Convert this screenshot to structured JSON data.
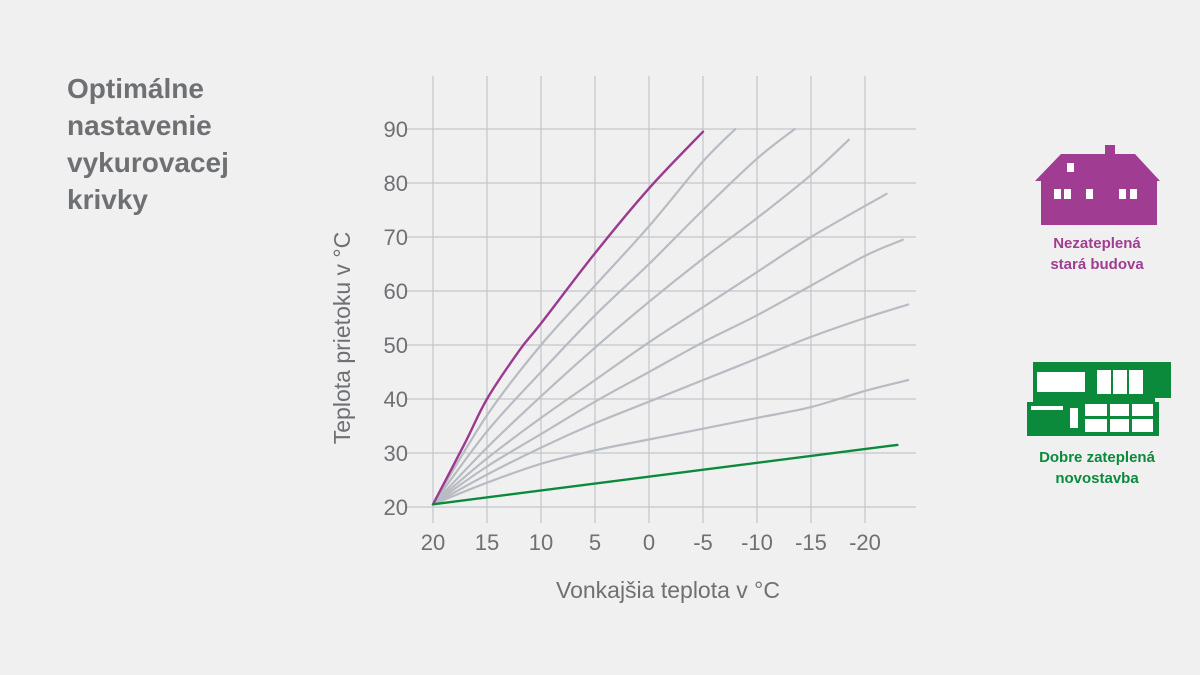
{
  "title": {
    "lines": [
      "Optimálne",
      "nastavenie",
      "vykurovacej",
      "krivky"
    ]
  },
  "legend": {
    "old_building": {
      "line1": "Nezateplená",
      "line2": "stará budova",
      "color": "#a03c91",
      "icon": "house-icon"
    },
    "new_building": {
      "line1": "Dobre zateplená",
      "line2": "novostavba",
      "color": "#0b8a3c",
      "icon": "modern-building-icon"
    }
  },
  "chart_data": {
    "type": "line",
    "xlabel": "Vonkajšia teplota v °C",
    "ylabel": "Teplota prietoku v °C",
    "x_reversed": true,
    "xlim": [
      20,
      -25
    ],
    "ylim": [
      20,
      90
    ],
    "xticks": [
      20,
      15,
      10,
      5,
      0,
      -5,
      -10,
      -15,
      -20
    ],
    "xtick_labels": [
      "20",
      "15",
      "10",
      "5",
      "0",
      "-5",
      "-10",
      "-15",
      "-20"
    ],
    "yticks": [
      20,
      30,
      40,
      50,
      60,
      70,
      80,
      90
    ],
    "ytick_labels": [
      "20",
      "30",
      "40",
      "50",
      "60",
      "70",
      "80",
      "90"
    ],
    "grid": true,
    "series": [
      {
        "x": [
          20,
          17,
          15,
          12,
          10,
          5,
          0,
          -5
        ],
        "y": [
          20.5,
          32,
          40,
          49,
          54,
          67,
          79,
          89.5
        ],
        "color": "#9b3a8f",
        "highlight": true
      },
      {
        "x": [
          20,
          15,
          10,
          5,
          0,
          -5,
          -8
        ],
        "y": [
          20.5,
          37,
          50,
          61,
          72,
          84,
          90
        ],
        "color": "#b8bcc2"
      },
      {
        "x": [
          20,
          15,
          10,
          5,
          0,
          -5,
          -10,
          -13.5
        ],
        "y": [
          20.5,
          34,
          45,
          55.5,
          65,
          75,
          84.5,
          90
        ],
        "color": "#b8bcc2"
      },
      {
        "x": [
          20,
          15,
          10,
          5,
          0,
          -5,
          -10,
          -15,
          -18.5
        ],
        "y": [
          20.5,
          31,
          40.5,
          49.5,
          58,
          66,
          73.5,
          81.5,
          88
        ],
        "color": "#b8bcc2"
      },
      {
        "x": [
          20,
          15,
          10,
          5,
          0,
          -5,
          -10,
          -15,
          -22
        ],
        "y": [
          20.5,
          29,
          36.5,
          43.5,
          50.5,
          57,
          63.5,
          70,
          78
        ],
        "color": "#b8bcc2"
      },
      {
        "x": [
          20,
          15,
          10,
          5,
          0,
          -5,
          -10,
          -15,
          -20,
          -23.5
        ],
        "y": [
          20.5,
          27.5,
          33.5,
          39.5,
          45,
          50.5,
          55.5,
          61,
          66.5,
          69.5
        ],
        "color": "#b8bcc2"
      },
      {
        "x": [
          20,
          15,
          10,
          5,
          0,
          -5,
          -10,
          -15,
          -20,
          -24
        ],
        "y": [
          20.5,
          26,
          31,
          35.5,
          39.5,
          43.5,
          47.5,
          51.5,
          55,
          57.5
        ],
        "color": "#b8bcc2"
      },
      {
        "x": [
          20,
          15,
          10,
          5,
          0,
          -5,
          -10,
          -15,
          -20,
          -24
        ],
        "y": [
          20.5,
          24.5,
          28,
          30.5,
          32.5,
          34.5,
          36.5,
          38.5,
          41.5,
          43.5
        ],
        "color": "#b8bcc2"
      },
      {
        "x": [
          20,
          -23
        ],
        "y": [
          20.5,
          31.5
        ],
        "color": "#0b8a3c",
        "highlight": true
      }
    ]
  }
}
